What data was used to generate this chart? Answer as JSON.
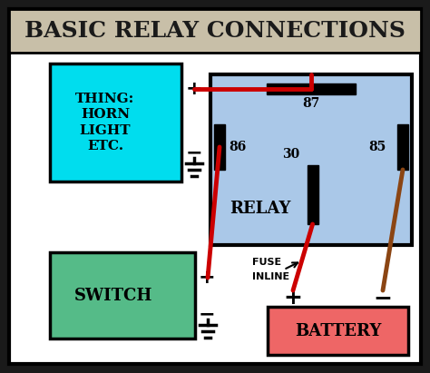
{
  "title": "BASIC RELAY CONNECTIONS",
  "title_bg": "#c8bfa8",
  "outer_bg": "#ffffff",
  "fig_bg": "#1a1a1a",
  "thing_box_color": "#00ddee",
  "switch_box_color": "#55bb88",
  "relay_box_color": "#aac8e8",
  "battery_box_color": "#ee6666",
  "wire_red": "#cc0000",
  "wire_brown": "#8B4513",
  "thing_text": "THING:\nHORN\nLIGHT\nETC.",
  "switch_text": "SWITCH",
  "relay_text": "RELAY",
  "battery_text": "BATTERY",
  "fuse_text1": "FUSE",
  "fuse_text2": "INLINE"
}
